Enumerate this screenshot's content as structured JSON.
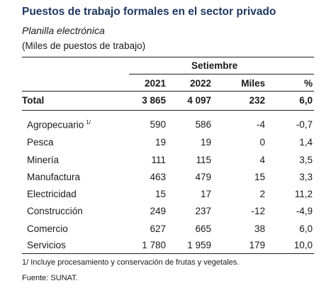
{
  "title": "Puestos de trabajo formales en el sector privado",
  "subtitle": "Planilla electrónica",
  "units": "(Miles de puestos de trabajo)",
  "header": {
    "group": "Setiembre",
    "col_2021": "2021",
    "col_2022": "2022",
    "col_miles": "Miles",
    "col_pct": "%"
  },
  "total": {
    "label": "Total",
    "v2021": "3 865",
    "v2022": "4 097",
    "miles": "232",
    "pct": "6,0"
  },
  "rows": [
    {
      "label": "Agropecuario",
      "sup": "1/",
      "v2021": "590",
      "v2022": "586",
      "miles": "-4",
      "pct": "-0,7"
    },
    {
      "label": "Pesca",
      "v2021": "19",
      "v2022": "19",
      "miles": "0",
      "pct": "1,4"
    },
    {
      "label": "Minería",
      "v2021": "111",
      "v2022": "115",
      "miles": "4",
      "pct": "3,5"
    },
    {
      "label": "Manufactura",
      "v2021": "463",
      "v2022": "479",
      "miles": "15",
      "pct": "3,3"
    },
    {
      "label": "Electricidad",
      "v2021": "15",
      "v2022": "17",
      "miles": "2",
      "pct": "11,2"
    },
    {
      "label": "Construcción",
      "v2021": "249",
      "v2022": "237",
      "miles": "-12",
      "pct": "-4,9"
    },
    {
      "label": "Comercio",
      "v2021": "627",
      "v2022": "665",
      "miles": "38",
      "pct": "6,0"
    },
    {
      "label": "Servicios",
      "v2021": "1 780",
      "v2022": "1 959",
      "miles": "179",
      "pct": "10,0"
    }
  ],
  "footnote": "1/ Incluye procesamiento y conservación de frutas y vegetales.",
  "source": "Fuente: SUNAT.",
  "colors": {
    "title": "#1f3864",
    "text": "#1a1a1a",
    "rule": "#1f1f1f"
  }
}
